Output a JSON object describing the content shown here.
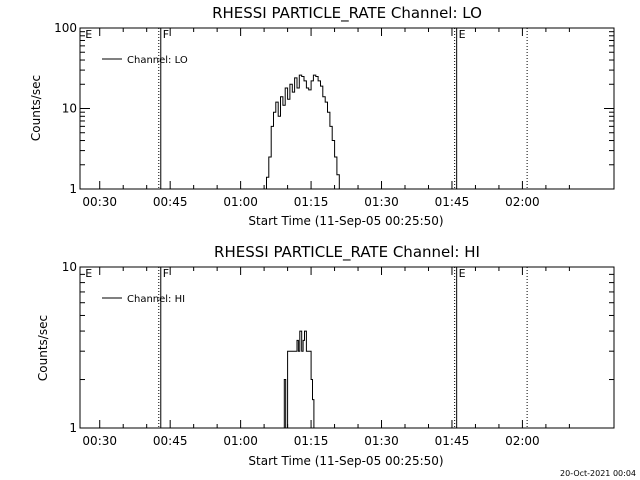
{
  "footer": {
    "timestamp": "20-Oct-2021 00:04"
  },
  "chart_data": [
    {
      "type": "line",
      "title": "RHESSI PARTICLE_RATE Channel: LO",
      "xlabel": "Start Time (11-Sep-05 00:25:50)",
      "ylabel": "Counts/sec",
      "yscale": "log",
      "xlim": [
        25.8,
        139.5
      ],
      "ylim": [
        1,
        100
      ],
      "x_ticks": [
        30,
        45,
        60,
        75,
        90,
        105,
        120
      ],
      "x_tick_labels": [
        "00:30",
        "00:45",
        "01:00",
        "01:15",
        "01:30",
        "01:45",
        "02:00"
      ],
      "y_ticks": [
        1,
        10,
        100
      ],
      "y_tick_labels": [
        "1",
        "10",
        "100"
      ],
      "legend": {
        "label": "Channel: LO",
        "location": "top-left"
      },
      "markers": [
        {
          "x": 26.5,
          "label": "E",
          "style": "none"
        },
        {
          "x": 43.0,
          "label": "F",
          "style": "solid-dotted"
        },
        {
          "x": 106.0,
          "label": "E",
          "style": "solid-dotted"
        },
        {
          "x": 121.0,
          "label": "",
          "style": "dotted"
        }
      ],
      "series": [
        {
          "name": "Channel: LO",
          "x": [
            65.1,
            65.5,
            66.0,
            66.5,
            67.0,
            67.5,
            68.0,
            68.5,
            69.0,
            69.5,
            70.0,
            70.5,
            71.0,
            71.5,
            72.0,
            72.5,
            73.0,
            73.5,
            74.0,
            74.5,
            75.0,
            75.5,
            76.0,
            76.5,
            77.0,
            77.5,
            78.0,
            78.5,
            79.0,
            79.5,
            80.0,
            80.5,
            81.0
          ],
          "y": [
            1.0,
            1.4,
            2.5,
            6,
            9,
            12,
            8,
            14,
            11,
            18,
            13,
            20,
            16,
            24,
            18,
            26,
            25,
            22,
            18,
            17,
            22,
            26,
            25,
            22,
            19,
            14,
            12,
            9,
            6,
            4,
            2.5,
            1.5,
            1.0
          ]
        }
      ]
    },
    {
      "type": "line",
      "title": "RHESSI PARTICLE_RATE Channel: HI",
      "xlabel": "Start Time (11-Sep-05 00:25:50)",
      "ylabel": "Counts/sec",
      "yscale": "log",
      "xlim": [
        25.8,
        139.5
      ],
      "ylim": [
        1,
        10
      ],
      "x_ticks": [
        30,
        45,
        60,
        75,
        90,
        105,
        120
      ],
      "x_tick_labels": [
        "00:30",
        "00:45",
        "01:00",
        "01:15",
        "01:30",
        "01:45",
        "02:00"
      ],
      "y_ticks": [
        1,
        10
      ],
      "y_tick_labels": [
        "1",
        "10"
      ],
      "legend": {
        "label": "Channel: HI",
        "location": "top-left"
      },
      "markers": [
        {
          "x": 26.5,
          "label": "E",
          "style": "none"
        },
        {
          "x": 43.0,
          "label": "F",
          "style": "solid-dotted"
        },
        {
          "x": 106.0,
          "label": "E",
          "style": "solid-dotted"
        },
        {
          "x": 121.0,
          "label": "",
          "style": "dotted"
        }
      ],
      "series": [
        {
          "name": "Channel: HI",
          "x": [
            69.0,
            69.3,
            69.6,
            70.0,
            70.3,
            70.6,
            71.0,
            71.3,
            71.6,
            72.0,
            72.3,
            72.6,
            73.0,
            73.3,
            73.6,
            74.0,
            74.3,
            74.6,
            75.0,
            75.3,
            75.6
          ],
          "y": [
            1.0,
            2.0,
            1.0,
            3.0,
            3.0,
            3.0,
            3.0,
            3.0,
            3.0,
            3.5,
            3.0,
            4.0,
            3.0,
            3.5,
            4.0,
            3.0,
            3.0,
            3.0,
            2.0,
            1.5,
            1.0
          ]
        }
      ]
    }
  ]
}
